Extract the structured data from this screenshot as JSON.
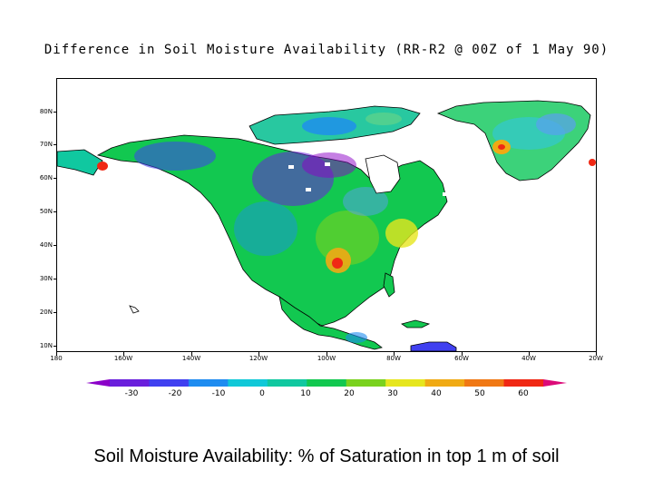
{
  "title": "Difference in Soil Moisture Availability (RR-R2 @ 00Z of 1 May 90)",
  "caption": "Soil Moisture Availability: % of Saturation in top 1 m of soil",
  "map": {
    "latitude_labels": [
      "80N",
      "70N",
      "60N",
      "50N",
      "40N",
      "30N",
      "20N",
      "10N"
    ],
    "longitude_labels": [
      "180",
      "160W",
      "140W",
      "120W",
      "100W",
      "80W",
      "60W",
      "40W",
      "20W"
    ]
  },
  "colorbar": {
    "tick_labels": [
      "-30",
      "-20",
      "-10",
      "0",
      "10",
      "20",
      "30",
      "40",
      "50",
      "60"
    ],
    "colors": [
      "#8b00c8",
      "#6a1fdc",
      "#4040f0",
      "#1e8cf0",
      "#10c8d8",
      "#10c8a0",
      "#12c850",
      "#7ad21e",
      "#e6e61e",
      "#f0aa14",
      "#f07814",
      "#f02814",
      "#dc0a78"
    ]
  }
}
